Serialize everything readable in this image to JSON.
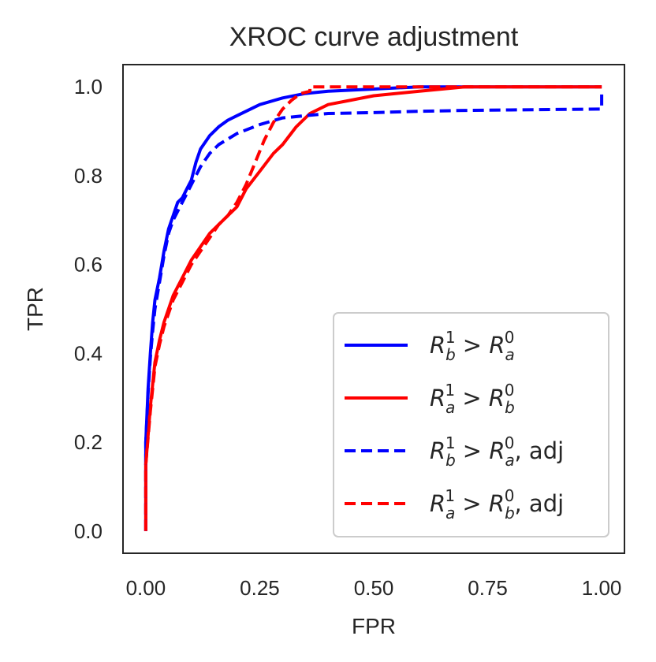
{
  "chart_data": {
    "type": "line",
    "title": "XROC curve adjustment",
    "xlabel": "FPR",
    "ylabel": "TPR",
    "xlim": [
      -0.05,
      1.05
    ],
    "ylim": [
      -0.05,
      1.05
    ],
    "xticks": [
      "0.00",
      "0.25",
      "0.50",
      "0.75",
      "1.00"
    ],
    "yticks": [
      "0.0",
      "0.2",
      "0.4",
      "0.6",
      "0.8",
      "1.0"
    ],
    "grid": false,
    "legend_position": "bottom-right",
    "series": [
      {
        "name": "R_b^1 > R_a^0",
        "legend": {
          "base": "R",
          "sub": "b",
          "sup": "1",
          "op": " > ",
          "base2": "R",
          "sub2": "a",
          "sup2": "0",
          "suffix": ""
        },
        "color": "#0000ff",
        "dash": "solid",
        "x": [
          0.0,
          0.0,
          0.005,
          0.01,
          0.015,
          0.02,
          0.03,
          0.04,
          0.05,
          0.06,
          0.07,
          0.08,
          0.09,
          0.1,
          0.11,
          0.12,
          0.14,
          0.16,
          0.18,
          0.2,
          0.25,
          0.3,
          0.35,
          0.4,
          0.5,
          0.6,
          0.7,
          0.8,
          1.0
        ],
        "y": [
          0.0,
          0.2,
          0.32,
          0.4,
          0.47,
          0.52,
          0.57,
          0.63,
          0.68,
          0.71,
          0.74,
          0.75,
          0.77,
          0.79,
          0.83,
          0.86,
          0.89,
          0.91,
          0.925,
          0.935,
          0.96,
          0.975,
          0.985,
          0.99,
          0.995,
          1.0,
          1.0,
          1.0,
          1.0
        ]
      },
      {
        "name": "R_a^1 > R_b^0",
        "legend": {
          "base": "R",
          "sub": "a",
          "sup": "1",
          "op": " > ",
          "base2": "R",
          "sub2": "b",
          "sup2": "0",
          "suffix": ""
        },
        "color": "#ff0000",
        "dash": "solid",
        "x": [
          0.0,
          0.0,
          0.01,
          0.02,
          0.03,
          0.04,
          0.05,
          0.06,
          0.08,
          0.1,
          0.12,
          0.14,
          0.16,
          0.18,
          0.2,
          0.22,
          0.25,
          0.28,
          0.3,
          0.33,
          0.36,
          0.4,
          0.45,
          0.5,
          0.6,
          0.7,
          0.8,
          0.9,
          1.0
        ],
        "y": [
          0.0,
          0.15,
          0.28,
          0.38,
          0.43,
          0.47,
          0.5,
          0.53,
          0.57,
          0.61,
          0.64,
          0.67,
          0.69,
          0.71,
          0.73,
          0.77,
          0.81,
          0.85,
          0.87,
          0.91,
          0.94,
          0.96,
          0.97,
          0.98,
          0.99,
          1.0,
          1.0,
          1.0,
          1.0
        ]
      },
      {
        "name": "R_b^1 > R_a^0, adj",
        "legend": {
          "base": "R",
          "sub": "b",
          "sup": "1",
          "op": " > ",
          "base2": "R",
          "sub2": "a",
          "sup2": "0",
          "suffix": ", adj"
        },
        "color": "#0000ff",
        "dash": "dashed",
        "x": [
          0.0,
          0.0,
          0.005,
          0.01,
          0.015,
          0.02,
          0.03,
          0.04,
          0.05,
          0.06,
          0.07,
          0.08,
          0.1,
          0.12,
          0.14,
          0.16,
          0.2,
          0.25,
          0.3,
          0.35,
          0.4,
          0.5,
          0.6,
          0.7,
          0.8,
          0.9,
          0.995,
          1.0,
          1.0
        ],
        "y": [
          0.0,
          0.2,
          0.31,
          0.39,
          0.45,
          0.5,
          0.56,
          0.62,
          0.67,
          0.7,
          0.72,
          0.74,
          0.78,
          0.82,
          0.85,
          0.87,
          0.895,
          0.915,
          0.93,
          0.935,
          0.94,
          0.942,
          0.945,
          0.947,
          0.948,
          0.949,
          0.95,
          0.95,
          0.99
        ]
      },
      {
        "name": "R_a^1 > R_b^0, adj",
        "legend": {
          "base": "R",
          "sub": "a",
          "sup": "1",
          "op": " > ",
          "base2": "R",
          "sub2": "b",
          "sup2": "0",
          "suffix": ", adj"
        },
        "color": "#ff0000",
        "dash": "dashed",
        "x": [
          0.0,
          0.0,
          0.01,
          0.02,
          0.03,
          0.04,
          0.05,
          0.06,
          0.08,
          0.1,
          0.12,
          0.14,
          0.16,
          0.18,
          0.2,
          0.22,
          0.24,
          0.26,
          0.28,
          0.3,
          0.32,
          0.34,
          0.36,
          0.36,
          0.5,
          0.7,
          1.0
        ],
        "y": [
          0.0,
          0.15,
          0.27,
          0.37,
          0.42,
          0.46,
          0.49,
          0.52,
          0.56,
          0.6,
          0.63,
          0.66,
          0.69,
          0.71,
          0.74,
          0.78,
          0.83,
          0.88,
          0.92,
          0.95,
          0.97,
          0.985,
          0.99,
          1.0,
          1.0,
          1.0,
          1.0
        ]
      }
    ]
  }
}
